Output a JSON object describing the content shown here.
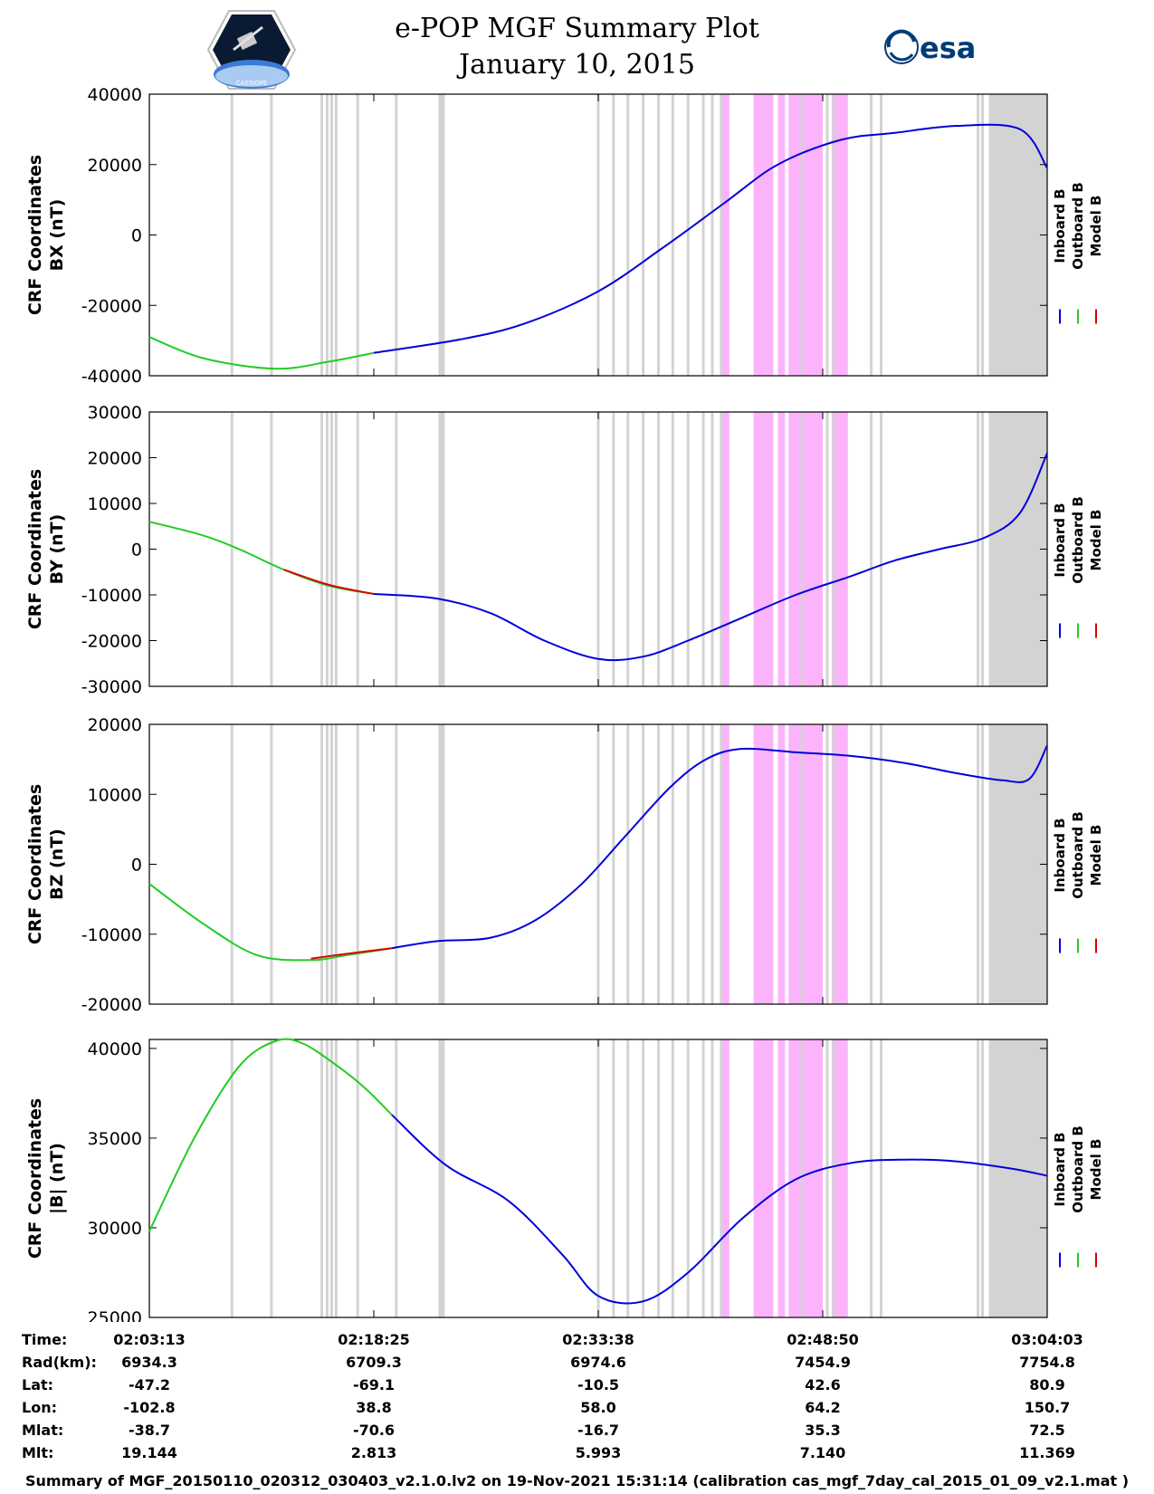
{
  "header": {
    "title_line1": "e-POP MGF Summary Plot",
    "title_line2": "January 10, 2015",
    "esa_logo_text": "esa",
    "cassiope_logo_text": "CASSIOPE"
  },
  "legend": {
    "labels": [
      "Inboard B",
      "Outboard B",
      "Model B"
    ]
  },
  "colors": {
    "inboard": "#0000dd",
    "outboard": "#22cc22",
    "model": "#dd0000",
    "gap_gray": "#d3d3d3",
    "gap_pink": "#fbb4fb"
  },
  "chart_data": [
    {
      "type": "line",
      "ylabel_line1": "CRF Coordinates",
      "ylabel_line2": "BX (nT)",
      "ylim": [
        -40000,
        40000
      ],
      "yticks": [
        -40000,
        -20000,
        0,
        20000,
        40000
      ],
      "xlim": [
        0,
        1.0
      ],
      "series": [
        {
          "name": "Outboard B",
          "x": [
            0,
            0.06,
            0.14,
            0.2,
            0.25
          ],
          "y": [
            -29000,
            -35000,
            -38000,
            -36000,
            -33500
          ]
        },
        {
          "name": "Inboard B",
          "x": [
            0.25,
            0.35,
            0.42,
            0.5,
            0.57,
            0.64,
            0.7,
            0.77,
            0.83,
            0.9,
            0.97,
            1.0
          ],
          "y": [
            -33500,
            -29500,
            -25000,
            -16000,
            -4000,
            9000,
            20000,
            27000,
            29000,
            31000,
            30000,
            19000
          ]
        }
      ]
    },
    {
      "type": "line",
      "ylabel_line1": "CRF Coordinates",
      "ylabel_line2": "BY (nT)",
      "ylim": [
        -30000,
        30000
      ],
      "yticks": [
        -30000,
        -20000,
        -10000,
        0,
        10000,
        20000,
        30000
      ],
      "xlim": [
        0,
        1.0
      ],
      "series": [
        {
          "name": "Outboard B",
          "x": [
            0,
            0.06,
            0.1,
            0.15,
            0.2,
            0.25
          ],
          "y": [
            6000,
            3000,
            0,
            -4500,
            -8000,
            -9800
          ]
        },
        {
          "name": "Model B",
          "x": [
            0.15,
            0.2,
            0.25
          ],
          "y": [
            -4500,
            -7800,
            -9800
          ]
        },
        {
          "name": "Inboard B",
          "x": [
            0.25,
            0.32,
            0.38,
            0.44,
            0.5,
            0.55,
            0.6,
            0.66,
            0.72,
            0.78,
            0.83,
            0.88,
            0.93,
            0.97,
            1.0
          ],
          "y": [
            -9800,
            -10800,
            -14000,
            -20000,
            -24000,
            -23500,
            -20000,
            -15000,
            -10000,
            -6000,
            -2500,
            0,
            2500,
            8000,
            21000
          ]
        }
      ]
    },
    {
      "type": "line",
      "ylabel_line1": "CRF Coordinates",
      "ylabel_line2": "BZ (nT)",
      "ylim": [
        -20000,
        20000
      ],
      "yticks": [
        -20000,
        -10000,
        0,
        10000,
        20000
      ],
      "xlim": [
        0,
        1.0
      ],
      "series": [
        {
          "name": "Outboard B",
          "x": [
            0,
            0.06,
            0.12,
            0.18,
            0.22,
            0.27
          ],
          "y": [
            -2800,
            -8500,
            -13000,
            -13700,
            -13000,
            -12000
          ]
        },
        {
          "name": "Model B",
          "x": [
            0.18,
            0.22,
            0.27
          ],
          "y": [
            -13500,
            -12800,
            -12000
          ]
        },
        {
          "name": "Inboard B",
          "x": [
            0.27,
            0.32,
            0.38,
            0.43,
            0.48,
            0.53,
            0.58,
            0.62,
            0.66,
            0.72,
            0.78,
            0.84,
            0.9,
            0.95,
            0.98,
            1.0
          ],
          "y": [
            -12000,
            -11000,
            -10500,
            -8000,
            -3000,
            4000,
            11000,
            15000,
            16500,
            16000,
            15500,
            14500,
            13000,
            12000,
            12200,
            17000
          ]
        }
      ]
    },
    {
      "type": "line",
      "ylabel_line1": "CRF Coordinates",
      "ylabel_line2": "|B| (nT)",
      "ylim": [
        25000,
        40500
      ],
      "yticks": [
        25000,
        30000,
        35000,
        40000
      ],
      "xlim": [
        0,
        1.0
      ],
      "series": [
        {
          "name": "Outboard B",
          "x": [
            0,
            0.05,
            0.1,
            0.14,
            0.17,
            0.21,
            0.24,
            0.27
          ],
          "y": [
            29800,
            35000,
            39000,
            40400,
            40300,
            39000,
            37800,
            36300
          ]
        },
        {
          "name": "Inboard B",
          "x": [
            0.27,
            0.33,
            0.4,
            0.46,
            0.5,
            0.55,
            0.6,
            0.66,
            0.72,
            0.78,
            0.84,
            0.9,
            0.96,
            1.0
          ],
          "y": [
            36300,
            33500,
            31500,
            28500,
            26200,
            25900,
            27500,
            30500,
            32700,
            33600,
            33800,
            33700,
            33300,
            32900
          ]
        }
      ]
    }
  ],
  "gaps": {
    "gray_bars": [
      0.092,
      0.136,
      0.192,
      0.198,
      0.203,
      0.208,
      0.232,
      0.275,
      0.327,
      0.5,
      0.517,
      0.533,
      0.55,
      0.567,
      0.583,
      0.6,
      0.617,
      0.627,
      0.637,
      0.727,
      0.755,
      0.762,
      0.804,
      0.815,
      0.923,
      0.928
    ],
    "gray_blocks": [
      [
        0.322,
        0.329
      ],
      [
        0.935,
        1.0
      ]
    ],
    "pink_blocks": [
      [
        0.637,
        0.646
      ],
      [
        0.673,
        0.695
      ],
      [
        0.7,
        0.708
      ],
      [
        0.712,
        0.75
      ],
      [
        0.76,
        0.778
      ]
    ]
  },
  "ephemeris": {
    "labels": [
      "Time:",
      "Rad(km):",
      "Lat:",
      "Lon:",
      "Mlat:",
      "Mlt:"
    ],
    "columns": [
      [
        "02:03:13",
        "6934.3",
        "-47.2",
        "-102.8",
        "-38.7",
        "19.144"
      ],
      [
        "02:18:25",
        "6709.3",
        "-69.1",
        "38.8",
        "-70.6",
        "2.813"
      ],
      [
        "02:33:38",
        "6974.6",
        "-10.5",
        "58.0",
        "-16.7",
        "5.993"
      ],
      [
        "02:48:50",
        "7454.9",
        "42.6",
        "64.2",
        "35.3",
        "7.140"
      ],
      [
        "03:04:03",
        "7754.8",
        "80.9",
        "150.7",
        "72.5",
        "11.369"
      ]
    ]
  },
  "footer": "Summary of MGF_20150110_020312_030403_v2.1.0.lv2 on 19-Nov-2021 15:31:14 (calibration cas_mgf_7day_cal_2015_01_09_v2.1.mat )"
}
